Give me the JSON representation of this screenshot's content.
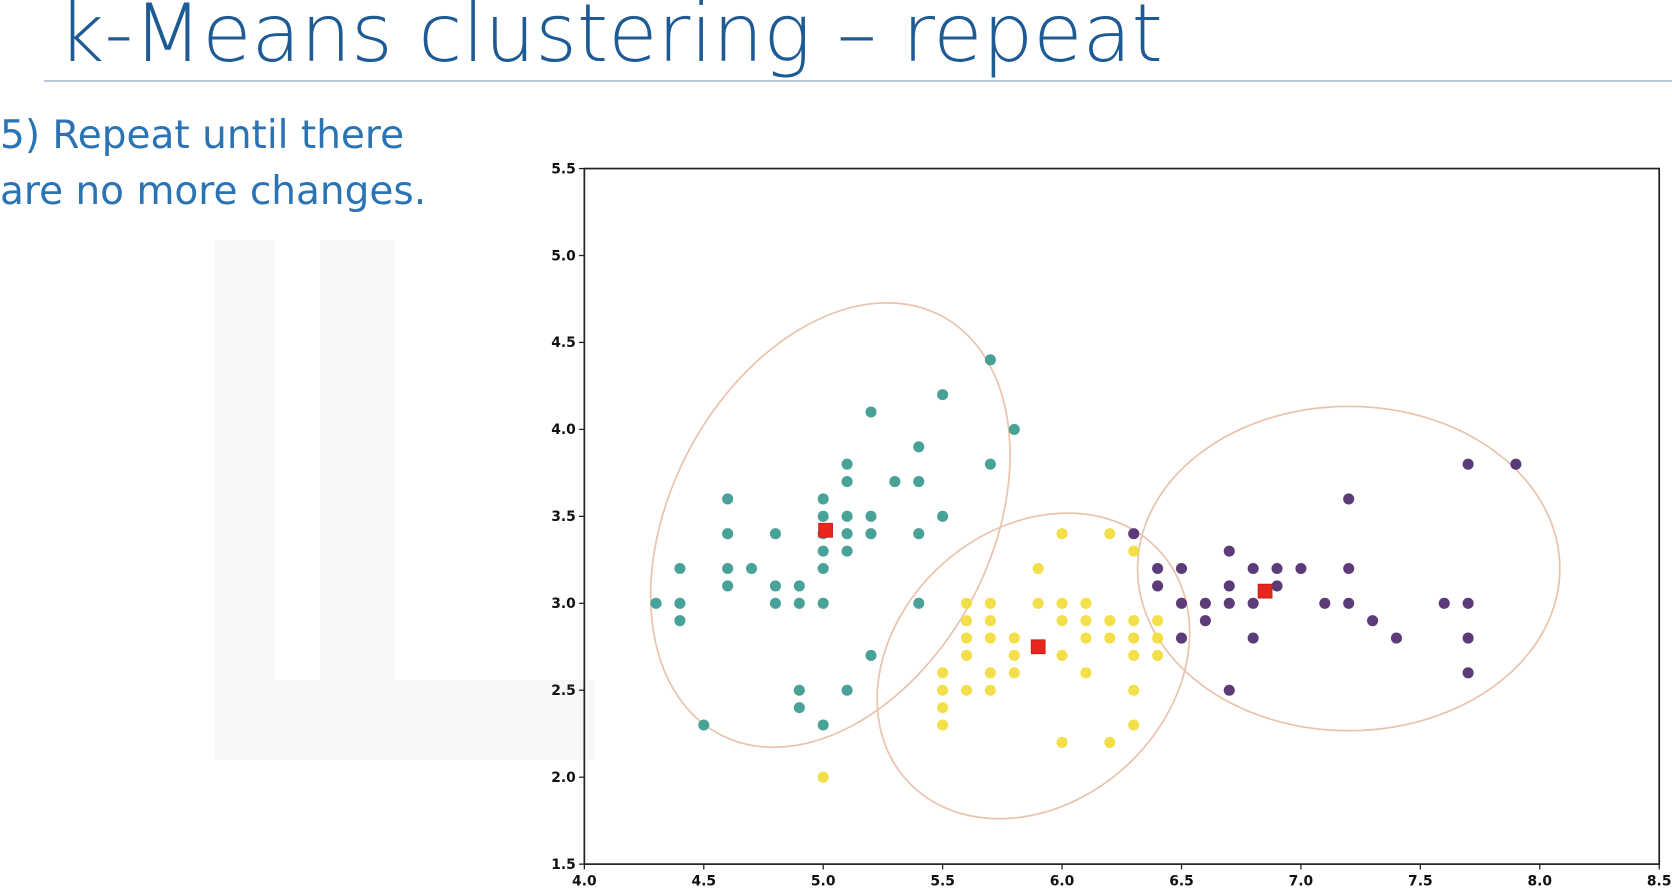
{
  "slide": {
    "title": "k-Means clustering – repeat",
    "bullet_line1": "5) Repeat until there",
    "bullet_line2": "are no more changes."
  },
  "colors": {
    "title": "#1e5b94",
    "bullet": "#2b73b3",
    "cluster_teal": "#3a9a8e",
    "cluster_yellow": "#f2dc3a",
    "cluster_purple": "#4e2a6e",
    "centroid": "#e8261e",
    "ellipse": "#e9c3ac"
  },
  "chart_data": {
    "type": "scatter",
    "title": "",
    "xlabel": "",
    "ylabel": "",
    "xlim": [
      4.0,
      8.5
    ],
    "ylim": [
      1.5,
      5.5
    ],
    "grid": false,
    "x_ticks": [
      "4.0",
      "4.5",
      "5.0",
      "5.5",
      "6.0",
      "6.5",
      "7.0",
      "7.5",
      "8.0",
      "8.5"
    ],
    "y_ticks": [
      "1.5",
      "2.0",
      "2.5",
      "3.0",
      "3.5",
      "4.0",
      "4.5",
      "5.0",
      "5.5"
    ],
    "series": [
      {
        "name": "cluster-teal",
        "color": "#3a9a8e",
        "points": [
          [
            4.3,
            3.0
          ],
          [
            4.4,
            3.2
          ],
          [
            4.4,
            3.0
          ],
          [
            4.4,
            2.9
          ],
          [
            4.5,
            2.3
          ],
          [
            4.6,
            3.6
          ],
          [
            4.6,
            3.4
          ],
          [
            4.6,
            3.2
          ],
          [
            4.6,
            3.1
          ],
          [
            4.7,
            3.2
          ],
          [
            4.8,
            3.4
          ],
          [
            4.8,
            3.1
          ],
          [
            4.8,
            3.0
          ],
          [
            4.9,
            3.1
          ],
          [
            4.9,
            3.0
          ],
          [
            4.9,
            2.5
          ],
          [
            4.9,
            2.4
          ],
          [
            5.0,
            3.6
          ],
          [
            5.0,
            3.5
          ],
          [
            5.0,
            3.4
          ],
          [
            5.0,
            3.3
          ],
          [
            5.0,
            3.2
          ],
          [
            5.0,
            3.0
          ],
          [
            5.0,
            2.3
          ],
          [
            5.1,
            3.8
          ],
          [
            5.1,
            3.7
          ],
          [
            5.1,
            3.5
          ],
          [
            5.1,
            3.4
          ],
          [
            5.1,
            3.3
          ],
          [
            5.1,
            2.5
          ],
          [
            5.2,
            4.1
          ],
          [
            5.2,
            3.5
          ],
          [
            5.2,
            3.4
          ],
          [
            5.2,
            2.7
          ],
          [
            5.3,
            3.7
          ],
          [
            5.4,
            3.9
          ],
          [
            5.4,
            3.7
          ],
          [
            5.4,
            3.4
          ],
          [
            5.4,
            3.0
          ],
          [
            5.5,
            4.2
          ],
          [
            5.5,
            3.5
          ],
          [
            5.7,
            4.4
          ],
          [
            5.7,
            3.8
          ],
          [
            5.8,
            4.0
          ]
        ]
      },
      {
        "name": "cluster-yellow",
        "color": "#f2dc3a",
        "points": [
          [
            5.0,
            2.0
          ],
          [
            5.5,
            2.6
          ],
          [
            5.5,
            2.5
          ],
          [
            5.5,
            2.4
          ],
          [
            5.5,
            2.3
          ],
          [
            5.6,
            3.0
          ],
          [
            5.6,
            2.9
          ],
          [
            5.6,
            2.8
          ],
          [
            5.6,
            2.7
          ],
          [
            5.6,
            2.5
          ],
          [
            5.7,
            3.0
          ],
          [
            5.7,
            2.9
          ],
          [
            5.7,
            2.8
          ],
          [
            5.7,
            2.6
          ],
          [
            5.7,
            2.5
          ],
          [
            5.8,
            2.8
          ],
          [
            5.8,
            2.7
          ],
          [
            5.8,
            2.6
          ],
          [
            5.9,
            3.2
          ],
          [
            5.9,
            3.0
          ],
          [
            6.0,
            3.4
          ],
          [
            6.0,
            3.0
          ],
          [
            6.0,
            2.9
          ],
          [
            6.0,
            2.7
          ],
          [
            6.0,
            2.2
          ],
          [
            6.1,
            3.0
          ],
          [
            6.1,
            2.9
          ],
          [
            6.1,
            2.8
          ],
          [
            6.1,
            2.6
          ],
          [
            6.2,
            3.4
          ],
          [
            6.2,
            2.9
          ],
          [
            6.2,
            2.8
          ],
          [
            6.2,
            2.2
          ],
          [
            6.3,
            3.3
          ],
          [
            6.3,
            2.9
          ],
          [
            6.3,
            2.8
          ],
          [
            6.3,
            2.7
          ],
          [
            6.3,
            2.5
          ],
          [
            6.3,
            2.3
          ],
          [
            6.4,
            2.9
          ],
          [
            6.4,
            2.8
          ],
          [
            6.4,
            2.7
          ]
        ]
      },
      {
        "name": "cluster-purple",
        "color": "#4e2a6e",
        "points": [
          [
            6.3,
            3.4
          ],
          [
            6.4,
            3.2
          ],
          [
            6.4,
            3.1
          ],
          [
            6.5,
            3.2
          ],
          [
            6.5,
            3.0
          ],
          [
            6.5,
            2.8
          ],
          [
            6.6,
            3.0
          ],
          [
            6.6,
            2.9
          ],
          [
            6.7,
            3.3
          ],
          [
            6.7,
            3.1
          ],
          [
            6.7,
            3.0
          ],
          [
            6.7,
            2.5
          ],
          [
            6.8,
            3.2
          ],
          [
            6.8,
            3.0
          ],
          [
            6.8,
            2.8
          ],
          [
            6.9,
            3.2
          ],
          [
            6.9,
            3.1
          ],
          [
            7.0,
            3.2
          ],
          [
            7.1,
            3.0
          ],
          [
            7.2,
            3.6
          ],
          [
            7.2,
            3.2
          ],
          [
            7.2,
            3.0
          ],
          [
            7.3,
            2.9
          ],
          [
            7.4,
            2.8
          ],
          [
            7.6,
            3.0
          ],
          [
            7.7,
            3.8
          ],
          [
            7.7,
            3.0
          ],
          [
            7.7,
            2.8
          ],
          [
            7.7,
            2.6
          ],
          [
            7.9,
            3.8
          ]
        ]
      }
    ],
    "centroids": [
      {
        "name": "centroid-teal",
        "x": 5.01,
        "y": 3.42
      },
      {
        "name": "centroid-yellow",
        "x": 5.9,
        "y": 2.75
      },
      {
        "name": "centroid-purple",
        "x": 6.85,
        "y": 3.07
      }
    ],
    "annotations": [
      {
        "type": "ellipse",
        "around": "cluster-teal",
        "cx": 5.03,
        "cy": 3.45,
        "color": "#e9c3ac"
      },
      {
        "type": "ellipse",
        "around": "cluster-yellow",
        "cx": 5.88,
        "cy": 2.64,
        "color": "#e9c3ac"
      },
      {
        "type": "ellipse",
        "around": "cluster-purple",
        "cx": 7.2,
        "cy": 3.2,
        "color": "#e9c3ac"
      }
    ]
  }
}
